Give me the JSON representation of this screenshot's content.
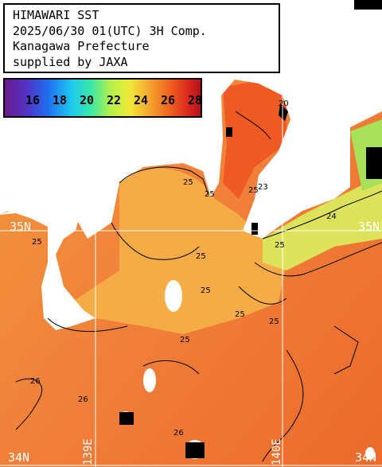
{
  "title": {
    "line1": "HIMAWARI SST",
    "line2": "2025/06/30 01(UTC) 3H Comp.",
    "line3": "Kanagawa Prefecture",
    "line4": "supplied by JAXA"
  },
  "colorbar": {
    "labels": [
      "16",
      "18",
      "20",
      "22",
      "24",
      "26",
      "28"
    ],
    "unit_min": 15,
    "unit_max": 29
  },
  "grid_labels": {
    "lat_upper_left": "35N",
    "lat_upper_right": "35N",
    "lat_lower_left": "34N",
    "lat_lower_right": "34N",
    "lon_left": "139E",
    "lon_right": "140E"
  },
  "contour_labels": [
    "25",
    "25",
    "25",
    "25",
    "25",
    "25",
    "25",
    "26",
    "26",
    "26",
    "24",
    "25",
    "25",
    "20",
    "25",
    "23"
  ],
  "colors": {
    "ocean_warm": "#f07a30",
    "ocean_mid": "#f4a83c",
    "ocean_cool": "#b8e85a",
    "land": "#ffffff",
    "missing": "#000000",
    "grid": "#ffffff"
  }
}
